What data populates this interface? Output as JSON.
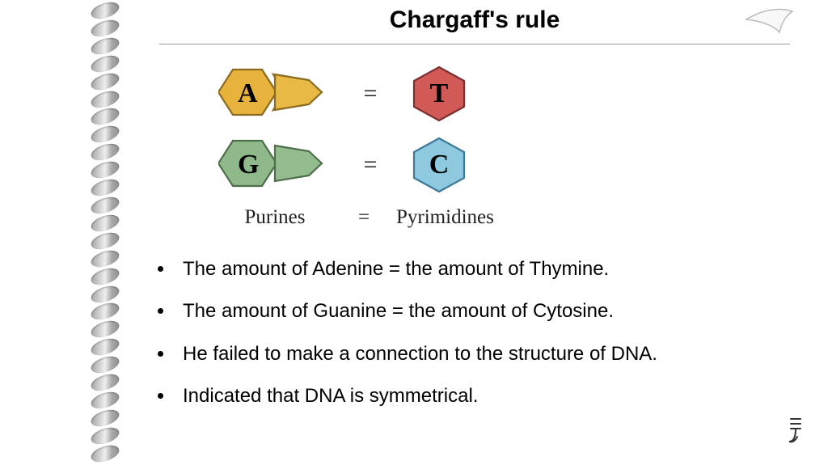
{
  "title": "Chargaff's rule",
  "diagram": {
    "rows": [
      {
        "purine": {
          "label": "A",
          "hex_fill": "#e7b33d",
          "pent_fill": "#e9b945",
          "stroke": "#8a6b1f"
        },
        "operator": "=",
        "pyrimidine": {
          "label": "T",
          "fill": "#d15a57",
          "stroke": "#7a2e2d"
        }
      },
      {
        "purine": {
          "label": "G",
          "hex_fill": "#8fb98a",
          "pent_fill": "#93bd8e",
          "stroke": "#4e6f4a"
        },
        "operator": "=",
        "pyrimidine": {
          "label": "C",
          "fill": "#8ec9e0",
          "stroke": "#3b7a96"
        }
      }
    ],
    "categories": {
      "left": "Purines",
      "operator": "=",
      "right": "Pyrimidines"
    },
    "category_fontsize": 25,
    "label_fontsize": 34
  },
  "bullets": [
    "The amount of Adenine = the amount of Thymine.",
    "The amount of Guanine = the amount of Cytosine.",
    "He failed to make a connection to the structure of DNA.",
    "Indicated that DNA is symmetrical."
  ],
  "styling": {
    "title_fontsize": 30,
    "bullet_fontsize": 24,
    "background": "#ffffff",
    "text_color": "#000000",
    "divider_color": "#999999"
  },
  "decoration": {
    "spiral_rings": 26,
    "corner_curl_stroke": "#bbbbbb"
  }
}
